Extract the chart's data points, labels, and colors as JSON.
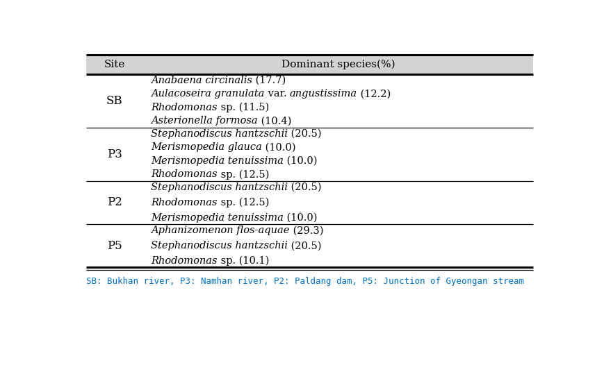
{
  "header": [
    "Site",
    "Dominant species(%)"
  ],
  "rows": [
    {
      "site": "SB",
      "species": [
        [
          [
            "Anabaena circinalis",
            "italic"
          ],
          [
            " (17.7)",
            "normal"
          ]
        ],
        [
          [
            "Aulacoseira granulata",
            "italic"
          ],
          [
            " var. ",
            "normal"
          ],
          [
            "angustissima",
            "italic"
          ],
          [
            " (12.2)",
            "normal"
          ]
        ],
        [
          [
            "Rhodomonas",
            "italic"
          ],
          [
            " sp. (11.5)",
            "normal"
          ]
        ],
        [
          [
            "Asterionella formosa",
            "italic"
          ],
          [
            " (10.4)",
            "normal"
          ]
        ]
      ]
    },
    {
      "site": "P3",
      "species": [
        [
          [
            "Stephanodiscus hantzschii",
            "italic"
          ],
          [
            " (20.5)",
            "normal"
          ]
        ],
        [
          [
            "Merismopedia glauca",
            "italic"
          ],
          [
            " (10.0)",
            "normal"
          ]
        ],
        [
          [
            "Merismopedia tenuissima",
            "italic"
          ],
          [
            " (10.0)",
            "normal"
          ]
        ],
        [
          [
            "Rhodomonas",
            "italic"
          ],
          [
            " sp. (12.5)",
            "normal"
          ]
        ]
      ]
    },
    {
      "site": "P2",
      "species": [
        [
          [
            "Stephanodiscus hantzschii",
            "italic"
          ],
          [
            " (20.5)",
            "normal"
          ]
        ],
        [
          [
            "Rhodomonas",
            "italic"
          ],
          [
            " sp. (12.5)",
            "normal"
          ]
        ],
        [
          [
            "Merismopedia tenuissima",
            "italic"
          ],
          [
            " (10.0)",
            "normal"
          ]
        ]
      ]
    },
    {
      "site": "P5",
      "species": [
        [
          [
            "Aphanizomenon flos-aquae",
            "italic"
          ],
          [
            " (29.3)",
            "normal"
          ]
        ],
        [
          [
            "Stephanodiscus hantzschii",
            "italic"
          ],
          [
            " (20.5)",
            "normal"
          ]
        ],
        [
          [
            "Rhodomonas",
            "italic"
          ],
          [
            " sp. (10.1)",
            "normal"
          ]
        ]
      ]
    }
  ],
  "footnote": "SB: Bukhan river, P3: Namhan river, P2: Paldang dam, P5: Junction of Gyeongan stream",
  "header_bg": "#d3d3d3",
  "footnote_color": "#0070c0",
  "font_size": 10.5,
  "header_font_size": 11,
  "site_font_size": 12
}
